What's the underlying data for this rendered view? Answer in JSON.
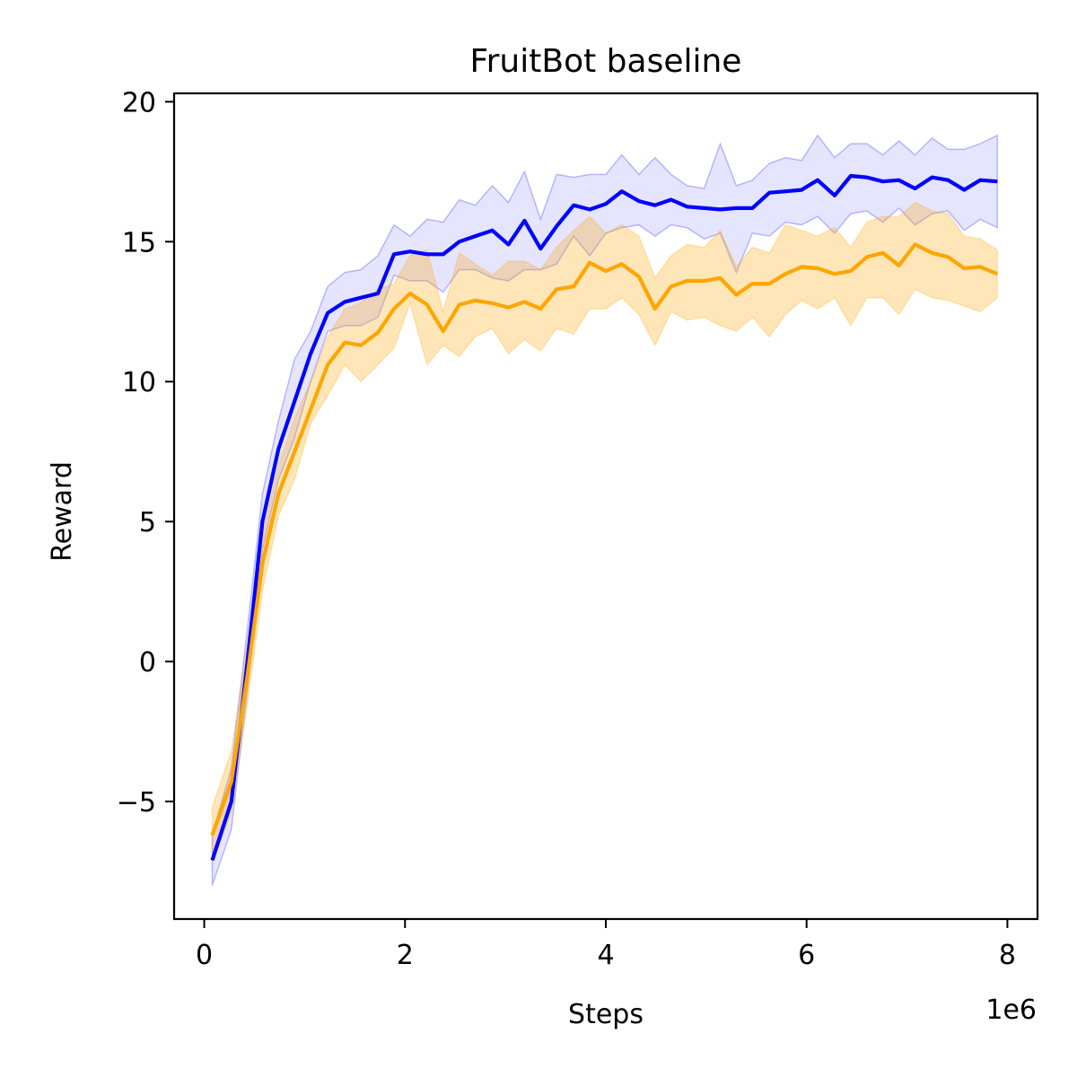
{
  "chart_data": {
    "type": "line",
    "title": "FruitBot baseline",
    "xlabel": "Steps",
    "ylabel": "Reward",
    "x_offset_text": "1e6",
    "xlim": [
      -300000,
      8300000
    ],
    "ylim": [
      -9.2,
      20.3
    ],
    "xticks": [
      0,
      2000000,
      4000000,
      6000000,
      8000000
    ],
    "xtick_labels": [
      "0",
      "2",
      "4",
      "6",
      "8"
    ],
    "yticks": [
      -5,
      0,
      5,
      10,
      15,
      20
    ],
    "ytick_labels": [
      "−5",
      "0",
      "5",
      "10",
      "15",
      "20"
    ],
    "grid": false,
    "x": [
      80000,
      270000,
      430000,
      580000,
      740000,
      900000,
      1060000,
      1230000,
      1400000,
      1560000,
      1730000,
      1890000,
      2050000,
      2220000,
      2380000,
      2540000,
      2700000,
      2870000,
      3030000,
      3190000,
      3350000,
      3510000,
      3680000,
      3840000,
      4000000,
      4160000,
      4330000,
      4490000,
      4650000,
      4810000,
      4980000,
      5140000,
      5300000,
      5460000,
      5630000,
      5790000,
      5950000,
      6110000,
      6280000,
      6440000,
      6600000,
      6760000,
      6920000,
      7080000,
      7250000,
      7410000,
      7570000,
      7730000,
      7900000
    ],
    "series": [
      {
        "color": "#0000ff",
        "band_color": "#0000ff",
        "values": [
          -7.1,
          -5.0,
          0.0,
          5.0,
          7.6,
          9.3,
          11.0,
          12.45,
          12.85,
          13.0,
          13.15,
          14.55,
          14.65,
          14.55,
          14.55,
          15.0,
          15.2,
          15.4,
          14.9,
          15.75,
          14.75,
          15.55,
          16.3,
          16.15,
          16.35,
          16.8,
          16.45,
          16.3,
          16.5,
          16.25,
          16.2,
          16.15,
          16.2,
          16.2,
          16.75,
          16.8,
          16.85,
          17.2,
          16.65,
          17.35,
          17.3,
          17.15,
          17.2,
          16.9,
          17.3,
          17.2,
          16.85,
          17.2,
          17.15
        ],
        "upper": [
          -6.2,
          -3.8,
          1.2,
          6.0,
          8.6,
          10.8,
          11.8,
          13.4,
          13.9,
          14.0,
          14.5,
          15.6,
          15.2,
          15.8,
          15.7,
          16.5,
          16.3,
          17.0,
          16.4,
          17.5,
          15.8,
          17.4,
          17.3,
          17.4,
          17.4,
          18.1,
          17.4,
          18.0,
          17.4,
          17.0,
          16.9,
          18.5,
          17.0,
          17.2,
          17.8,
          18.0,
          17.9,
          18.8,
          18.0,
          18.5,
          18.5,
          18.1,
          18.6,
          18.1,
          18.7,
          18.3,
          18.3,
          18.5,
          18.8
        ],
        "lower": [
          -8.0,
          -6.0,
          -1.0,
          4.0,
          6.5,
          8.0,
          10.0,
          11.8,
          12.0,
          12.0,
          12.3,
          13.8,
          13.6,
          13.6,
          13.2,
          14.0,
          14.0,
          13.7,
          13.6,
          14.0,
          14.0,
          14.2,
          15.2,
          14.5,
          15.3,
          15.5,
          15.6,
          15.2,
          15.6,
          15.5,
          15.1,
          15.3,
          13.9,
          15.3,
          15.2,
          15.7,
          15.6,
          15.9,
          15.3,
          16.0,
          16.1,
          15.7,
          16.2,
          15.6,
          16.0,
          16.1,
          15.4,
          15.8,
          15.5
        ]
      },
      {
        "color": "#ffa500",
        "band_color": "#ffa500",
        "values": [
          -6.2,
          -4.3,
          -0.5,
          3.5,
          6.0,
          7.5,
          9.0,
          10.6,
          11.4,
          11.3,
          11.75,
          12.6,
          13.15,
          12.75,
          11.8,
          12.75,
          12.9,
          12.8,
          12.65,
          12.85,
          12.6,
          13.3,
          13.4,
          14.25,
          13.95,
          14.2,
          13.75,
          12.6,
          13.4,
          13.6,
          13.6,
          13.7,
          13.1,
          13.5,
          13.5,
          13.85,
          14.1,
          14.05,
          13.85,
          13.95,
          14.45,
          14.6,
          14.15,
          14.9,
          14.6,
          14.45,
          14.05,
          14.1,
          13.85
        ],
        "upper": [
          -5.2,
          -3.2,
          0.7,
          4.5,
          7.0,
          8.7,
          10.0,
          11.6,
          12.6,
          12.8,
          13.3,
          13.5,
          14.5,
          14.7,
          12.5,
          14.6,
          14.2,
          13.8,
          14.3,
          14.3,
          14.0,
          14.8,
          15.4,
          15.9,
          15.3,
          15.6,
          15.2,
          13.7,
          14.5,
          14.9,
          14.8,
          15.4,
          14.1,
          14.8,
          14.6,
          15.6,
          15.4,
          15.2,
          15.5,
          14.8,
          15.7,
          15.9,
          15.9,
          16.4,
          16.1,
          16.0,
          15.2,
          15.1,
          14.7
        ],
        "lower": [
          -7.2,
          -5.4,
          -1.5,
          2.5,
          5.2,
          6.5,
          8.5,
          9.5,
          10.6,
          10.0,
          10.6,
          11.2,
          12.8,
          10.6,
          11.3,
          10.9,
          11.6,
          11.9,
          11.0,
          11.5,
          11.1,
          11.9,
          11.7,
          12.6,
          12.6,
          13.0,
          12.4,
          11.3,
          12.5,
          12.2,
          12.3,
          12.0,
          11.8,
          12.3,
          11.6,
          12.4,
          12.9,
          12.6,
          13.0,
          12.0,
          13.0,
          13.0,
          12.4,
          13.3,
          13.0,
          12.9,
          12.7,
          12.5,
          13.0
        ]
      }
    ]
  }
}
